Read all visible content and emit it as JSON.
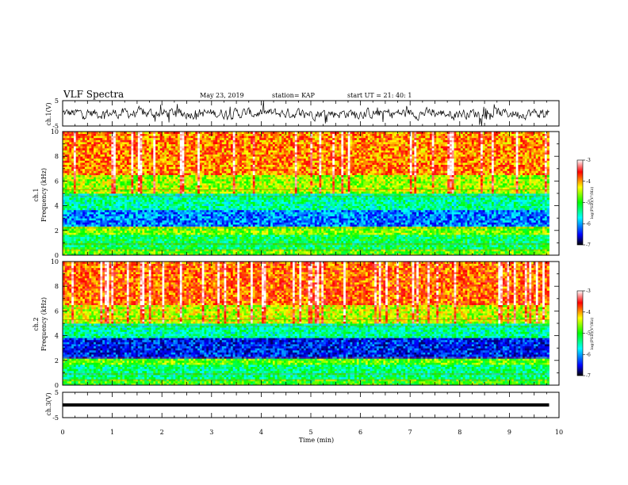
{
  "header": {
    "title": "VLF Spectra",
    "date": "May 23, 2019",
    "station": "station= KAP",
    "start": "start  UT =   21: 40: 1"
  },
  "chart_data": [
    {
      "type": "line",
      "panel": "ch1_waveform",
      "ylabel": "ch.1(V)",
      "ylim": [
        -5,
        5
      ],
      "yticks": [
        "5",
        "-5"
      ],
      "series": [
        {
          "x": [
            0,
            9.8
          ],
          "y_mean": 0,
          "y_range": [
            -5,
            5
          ]
        }
      ]
    },
    {
      "type": "heatmap",
      "panel": "ch1_spectrogram",
      "ylabel_channel": "ch.1",
      "ylabel": "Frequency  (kHz)",
      "ylim": [
        0,
        10
      ],
      "yticks": [
        "0",
        "2",
        "4",
        "6",
        "8",
        "10"
      ],
      "colorbar": {
        "label": "log(PSD)(V²/Hz)",
        "range": [
          -7,
          -3
        ],
        "ticks": [
          "-3",
          "-4",
          "-5",
          "-6",
          "-7"
        ]
      },
      "bands": [
        {
          "from": 0,
          "to": 0.5,
          "level": -4.8
        },
        {
          "from": 0.5,
          "to": 1.6,
          "level": -5.2
        },
        {
          "from": 1.6,
          "to": 2.4,
          "level": -4.7
        },
        {
          "from": 2.4,
          "to": 3.6,
          "level": -6.0
        },
        {
          "from": 3.6,
          "to": 5.0,
          "level": -5.4
        },
        {
          "from": 5.0,
          "to": 6.5,
          "level": -4.6
        },
        {
          "from": 6.5,
          "to": 10,
          "level": -4.0
        }
      ]
    },
    {
      "type": "heatmap",
      "panel": "ch2_spectrogram",
      "ylabel_channel": "ch.2",
      "ylabel": "Frequency  (kHz)",
      "ylim": [
        0,
        10
      ],
      "yticks": [
        "0",
        "2",
        "4",
        "6",
        "8",
        "10"
      ],
      "colorbar": {
        "label": "log(PSD)(V²/Hz)",
        "range": [
          -7,
          -3
        ],
        "ticks": [
          "-3",
          "-4",
          "-5",
          "-6",
          "-7"
        ]
      },
      "bands": [
        {
          "from": 0,
          "to": 0.5,
          "level": -4.9
        },
        {
          "from": 0.5,
          "to": 1.7,
          "level": -5.3
        },
        {
          "from": 1.7,
          "to": 2.2,
          "level": -4.8
        },
        {
          "from": 2.2,
          "to": 3.8,
          "level": -6.3
        },
        {
          "from": 3.8,
          "to": 5.0,
          "level": -5.4
        },
        {
          "from": 5.0,
          "to": 6.5,
          "level": -4.5
        },
        {
          "from": 6.5,
          "to": 10,
          "level": -3.9
        }
      ]
    },
    {
      "type": "line",
      "panel": "ch3_waveform",
      "ylabel": "ch.3(V)",
      "ylim": [
        -5,
        5
      ],
      "yticks": [
        "5",
        "-5"
      ],
      "series": [
        {
          "x": [
            0,
            9.8
          ],
          "y": [
            0,
            0
          ]
        }
      ]
    }
  ],
  "xaxis": {
    "label": "Time  (min)",
    "range": [
      0,
      10
    ],
    "ticks": [
      "0",
      "1",
      "2",
      "3",
      "4",
      "5",
      "6",
      "7",
      "8",
      "9",
      "10"
    ],
    "data_end": 9.8
  },
  "colors": {
    "axis": "#000000",
    "trace": "#000000",
    "colormap": [
      "#000000",
      "#0000ff",
      "#00ffff",
      "#00ff00",
      "#ffff00",
      "#ff0000",
      "#ffffff"
    ]
  }
}
